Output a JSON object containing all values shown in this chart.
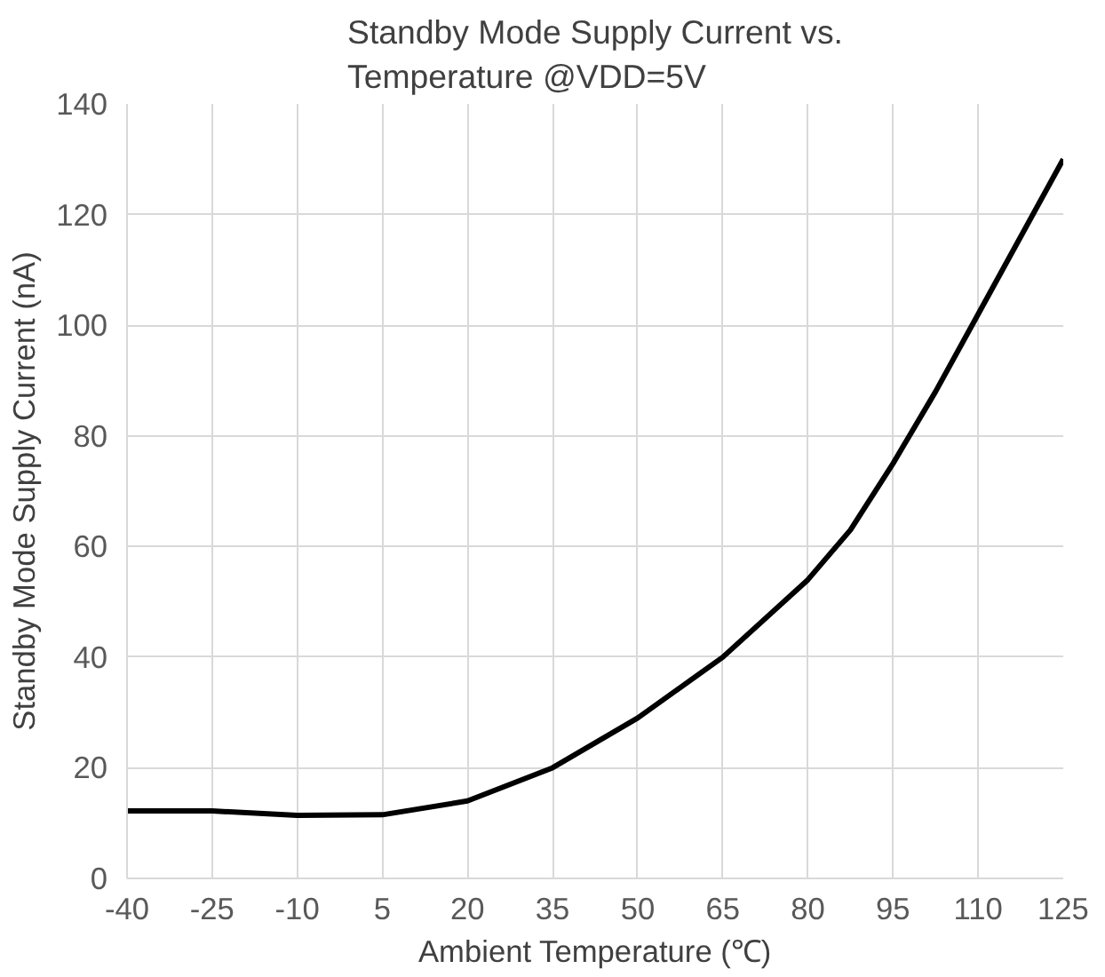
{
  "chart_data": {
    "type": "line",
    "title": "Standby Mode Supply Current vs.\nTemperature @VDD=5V",
    "xlabel": "Ambient Temperature (℃)",
    "ylabel": "Standby Mode Supply Current (nA)",
    "x": [
      -40,
      -25,
      -10,
      5,
      20,
      35,
      50,
      65,
      80,
      87.5,
      95,
      102.5,
      110,
      117.5,
      125
    ],
    "series": [
      {
        "color": "#000000",
        "values": [
          12.2,
          12.2,
          11.4,
          11.5,
          14,
          20,
          29,
          40,
          54,
          63,
          75,
          88,
          102,
          116,
          130
        ]
      }
    ],
    "xlim": [
      -40,
      125
    ],
    "xticks": [
      -40,
      -25,
      -10,
      5,
      20,
      35,
      50,
      65,
      80,
      95,
      110,
      125
    ],
    "ylim": [
      0,
      140
    ],
    "yticks": [
      0,
      20,
      40,
      60,
      80,
      100,
      120,
      140
    ],
    "grid": true,
    "marker": "none",
    "line_style": "solid"
  }
}
